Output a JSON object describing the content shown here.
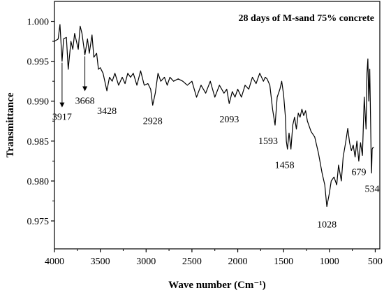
{
  "chart_data": {
    "type": "line",
    "title": "28 days of M-sand 75% concrete",
    "xlabel": "Wave number (Cm⁻¹)",
    "ylabel": "Transmittance",
    "xlim": [
      4000,
      450
    ],
    "ylim": [
      0.9715,
      1.0025
    ],
    "x_reversed": true,
    "grid": false,
    "x_ticks": [
      4000,
      3500,
      3000,
      2500,
      2000,
      1500,
      1000,
      500
    ],
    "x_tick_labels": [
      "4000",
      "3500",
      "3000",
      "2500",
      "2000",
      "1500",
      "1000",
      "500"
    ],
    "y_ticks": [
      0.975,
      0.98,
      0.985,
      0.99,
      0.995,
      1.0
    ],
    "y_tick_labels": [
      "0.975",
      "0.980",
      "0.985",
      "0.990",
      "0.995",
      "1.000"
    ],
    "series": [
      {
        "color": "#000000",
        "x": [
          4000,
          3960,
          3940,
          3917,
          3900,
          3870,
          3850,
          3820,
          3800,
          3780,
          3760,
          3740,
          3720,
          3700,
          3668,
          3640,
          3620,
          3590,
          3570,
          3540,
          3520,
          3500,
          3470,
          3428,
          3400,
          3370,
          3340,
          3300,
          3260,
          3230,
          3200,
          3170,
          3140,
          3100,
          3060,
          3020,
          2980,
          2950,
          2928,
          2900,
          2870,
          2840,
          2800,
          2770,
          2740,
          2700,
          2650,
          2600,
          2550,
          2500,
          2450,
          2400,
          2350,
          2300,
          2250,
          2200,
          2150,
          2120,
          2093,
          2060,
          2030,
          2000,
          1960,
          1920,
          1880,
          1840,
          1800,
          1760,
          1720,
          1700,
          1680,
          1650,
          1620,
          1593,
          1570,
          1540,
          1520,
          1500,
          1480,
          1470,
          1458,
          1440,
          1420,
          1400,
          1380,
          1360,
          1340,
          1320,
          1300,
          1280,
          1260,
          1240,
          1200,
          1160,
          1120,
          1080,
          1050,
          1028,
          1000,
          980,
          950,
          920,
          900,
          870,
          850,
          820,
          800,
          780,
          760,
          740,
          720,
          700,
          679,
          660,
          640,
          620,
          600,
          590,
          580,
          570,
          560,
          550,
          545,
          540,
          534,
          525,
          515
        ],
        "y": [
          0.9975,
          0.9978,
          0.9996,
          0.995,
          0.9978,
          0.998,
          0.994,
          0.9975,
          0.9965,
          0.9985,
          0.9975,
          0.9965,
          0.9994,
          0.9985,
          0.9958,
          0.9978,
          0.996,
          0.9983,
          0.9955,
          0.996,
          0.994,
          0.9942,
          0.9935,
          0.9913,
          0.993,
          0.9925,
          0.9935,
          0.992,
          0.993,
          0.9922,
          0.9935,
          0.993,
          0.9935,
          0.992,
          0.9938,
          0.992,
          0.9922,
          0.9915,
          0.9895,
          0.991,
          0.9935,
          0.9925,
          0.993,
          0.992,
          0.993,
          0.9925,
          0.9928,
          0.9925,
          0.992,
          0.9925,
          0.9905,
          0.992,
          0.991,
          0.9925,
          0.9905,
          0.992,
          0.991,
          0.9915,
          0.9897,
          0.9912,
          0.9905,
          0.9915,
          0.9905,
          0.992,
          0.9915,
          0.993,
          0.9922,
          0.9935,
          0.9925,
          0.993,
          0.9928,
          0.992,
          0.989,
          0.987,
          0.9905,
          0.9915,
          0.9925,
          0.9908,
          0.988,
          0.985,
          0.984,
          0.986,
          0.984,
          0.987,
          0.988,
          0.9865,
          0.9885,
          0.988,
          0.989,
          0.9882,
          0.9888,
          0.9875,
          0.9862,
          0.9855,
          0.9835,
          0.981,
          0.9795,
          0.9768,
          0.9785,
          0.98,
          0.9805,
          0.9795,
          0.982,
          0.98,
          0.983,
          0.985,
          0.9866,
          0.9848,
          0.9838,
          0.9845,
          0.983,
          0.985,
          0.9825,
          0.9848,
          0.9832,
          0.9905,
          0.9865,
          0.9935,
          0.9953,
          0.99,
          0.994,
          0.987,
          0.9835,
          0.981,
          0.984,
          0.9842,
          0.9842
        ]
      }
    ],
    "annotations": [
      {
        "text": "3917",
        "x": 3917,
        "y": 0.995,
        "arrow": true
      },
      {
        "text": "3668",
        "x": 3668,
        "y": 0.9958,
        "arrow": true
      },
      {
        "text": "3428",
        "x": 3428,
        "y": 0.9913
      },
      {
        "text": "2928",
        "x": 2928,
        "y": 0.9895
      },
      {
        "text": "2093",
        "x": 2093,
        "y": 0.9897
      },
      {
        "text": "1593",
        "x": 1593,
        "y": 0.987
      },
      {
        "text": "1458",
        "x": 1458,
        "y": 0.984
      },
      {
        "text": "1028",
        "x": 1028,
        "y": 0.9768
      },
      {
        "text": "679",
        "x": 679,
        "y": 0.9832
      },
      {
        "text": "534",
        "x": 534,
        "y": 0.981
      }
    ]
  }
}
